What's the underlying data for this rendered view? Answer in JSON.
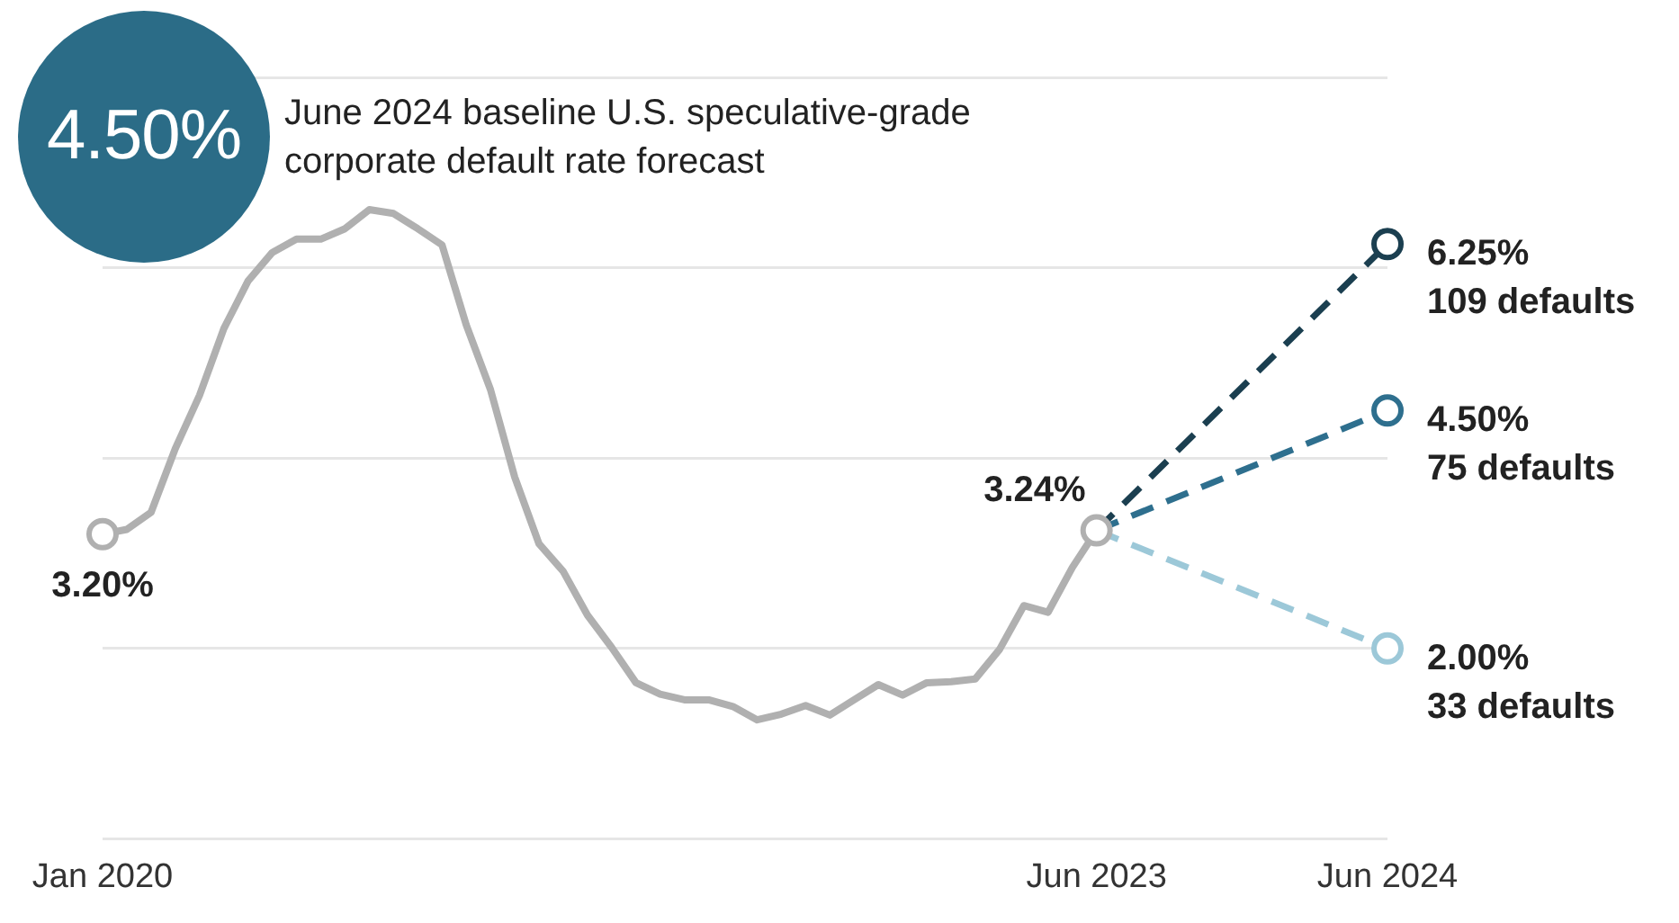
{
  "chart_data": {
    "type": "line",
    "title": "4.50%",
    "subtitle": "June 2024 baseline U.S. speculative-grade corporate default rate forecast",
    "x": [
      "2020-01",
      "2020-02",
      "2020-03",
      "2020-04",
      "2020-05",
      "2020-06",
      "2020-07",
      "2020-08",
      "2020-09",
      "2020-10",
      "2020-11",
      "2020-12",
      "2021-01",
      "2021-02",
      "2021-03",
      "2021-04",
      "2021-05",
      "2021-06",
      "2021-07",
      "2021-08",
      "2021-09",
      "2021-10",
      "2021-11",
      "2021-12",
      "2022-01",
      "2022-02",
      "2022-03",
      "2022-04",
      "2022-05",
      "2022-06",
      "2022-07",
      "2022-08",
      "2022-09",
      "2022-10",
      "2022-11",
      "2022-12",
      "2023-01",
      "2023-02",
      "2023-03",
      "2023-04",
      "2023-05",
      "2023-06"
    ],
    "series": [
      {
        "color": "#b0b0b0",
        "marker": "none",
        "line_style": "solid",
        "values": [
          3.2,
          3.25,
          3.43,
          4.1,
          4.66,
          5.36,
          5.86,
          6.16,
          6.3,
          6.3,
          6.41,
          6.61,
          6.57,
          6.41,
          6.24,
          5.4,
          4.72,
          3.8,
          3.1,
          2.81,
          2.35,
          2.01,
          1.64,
          1.52,
          1.46,
          1.46,
          1.39,
          1.25,
          1.31,
          1.4,
          1.3,
          1.46,
          1.62,
          1.51,
          1.64,
          1.65,
          1.68,
          1.99,
          2.45,
          2.38,
          2.85,
          3.24
        ]
      },
      {
        "type": "scatter",
        "x": [
          "2020-01",
          "2023-06"
        ],
        "color": "#b0b0b0",
        "marker": "circle",
        "values": [
          3.2,
          3.24
        ],
        "value_labels": [
          "3.20%",
          "3.24%"
        ]
      },
      {
        "x": [
          "2023-06",
          "2024-06"
        ],
        "color": "#1b3f50",
        "marker": "circle",
        "line_style": "dashed",
        "values": [
          3.24,
          6.25
        ],
        "value_labels": [
          null,
          "6.25%"
        ]
      },
      {
        "x": [
          "2023-06",
          "2024-06"
        ],
        "color": "#2e6f8e",
        "marker": "circle",
        "line_style": "dashed",
        "values": [
          3.24,
          4.5
        ],
        "value_labels": [
          null,
          "4.50%"
        ]
      },
      {
        "x": [
          "2023-06",
          "2024-06"
        ],
        "color": "#9cc8d8",
        "marker": "circle",
        "line_style": "dashed",
        "values": [
          3.24,
          2.0
        ],
        "value_labels": [
          null,
          "2.00%"
        ]
      }
    ],
    "annotations": [
      {
        "text": "109 defaults",
        "x": "2024-06",
        "y": 6.25
      },
      {
        "text": "75 defaults",
        "x": "2024-06",
        "y": 4.5
      },
      {
        "text": "33 defaults",
        "x": "2024-06",
        "y": 2.0
      }
    ],
    "xlim": [
      "2020-01",
      "2024-06"
    ],
    "xticks": [
      {
        "value": "2020-01",
        "label": "Jan 2020"
      },
      {
        "value": "2023-06",
        "label": "Jun 2023"
      },
      {
        "value": "2024-06",
        "label": "Jun 2024"
      }
    ],
    "ylim": [
      0,
      8
    ],
    "yticks": [
      {
        "value": 0,
        "label": null
      },
      {
        "value": 2,
        "label": null
      },
      {
        "value": 4,
        "label": null
      },
      {
        "value": 6,
        "label": null
      },
      {
        "value": 8,
        "label": null
      }
    ],
    "grid": "y",
    "tick_labels": "x"
  }
}
